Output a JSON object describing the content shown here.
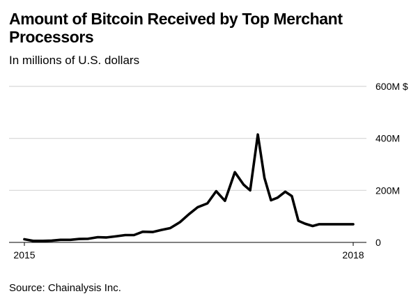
{
  "chart_data": {
    "type": "line",
    "title": "Amount of Bitcoin Received by Top Merchant Processors",
    "subtitle": "In millions of U.S. dollars",
    "source": "Source: Chainalysis Inc.",
    "ylim": [
      0,
      600
    ],
    "y_ticks": [
      {
        "value": 600,
        "label": "600M $"
      },
      {
        "value": 400,
        "label": "400M"
      },
      {
        "value": 200,
        "label": "200M"
      },
      {
        "value": 0,
        "label": "0"
      }
    ],
    "x_ticks": [
      {
        "value": 2015,
        "label": "2015"
      },
      {
        "value": 2018,
        "label": "2018"
      }
    ],
    "grid": true,
    "series": [
      {
        "color": "#000000",
        "x": [
          2015.0,
          2015.08,
          2015.17,
          2015.25,
          2015.33,
          2015.42,
          2015.5,
          2015.58,
          2015.67,
          2015.75,
          2015.83,
          2015.92,
          2016.0,
          2016.08,
          2016.17,
          2016.25,
          2016.33,
          2016.42,
          2016.5,
          2016.58,
          2016.67,
          2016.75,
          2016.83,
          2016.92,
          2017.0,
          2017.06,
          2017.13,
          2017.19,
          2017.25,
          2017.31,
          2017.38,
          2017.44,
          2017.5,
          2017.56,
          2017.63,
          2017.69,
          2017.75,
          2017.81,
          2017.88,
          2017.94,
          2018.0
        ],
        "values": [
          12,
          6,
          6,
          7,
          10,
          10,
          13,
          14,
          20,
          19,
          23,
          28,
          28,
          41,
          40,
          48,
          55,
          78,
          108,
          135,
          150,
          197,
          160,
          270,
          222,
          200,
          415,
          248,
          162,
          172,
          195,
          178,
          83,
          72,
          63,
          70,
          70,
          70,
          70,
          70,
          70
        ]
      }
    ]
  }
}
